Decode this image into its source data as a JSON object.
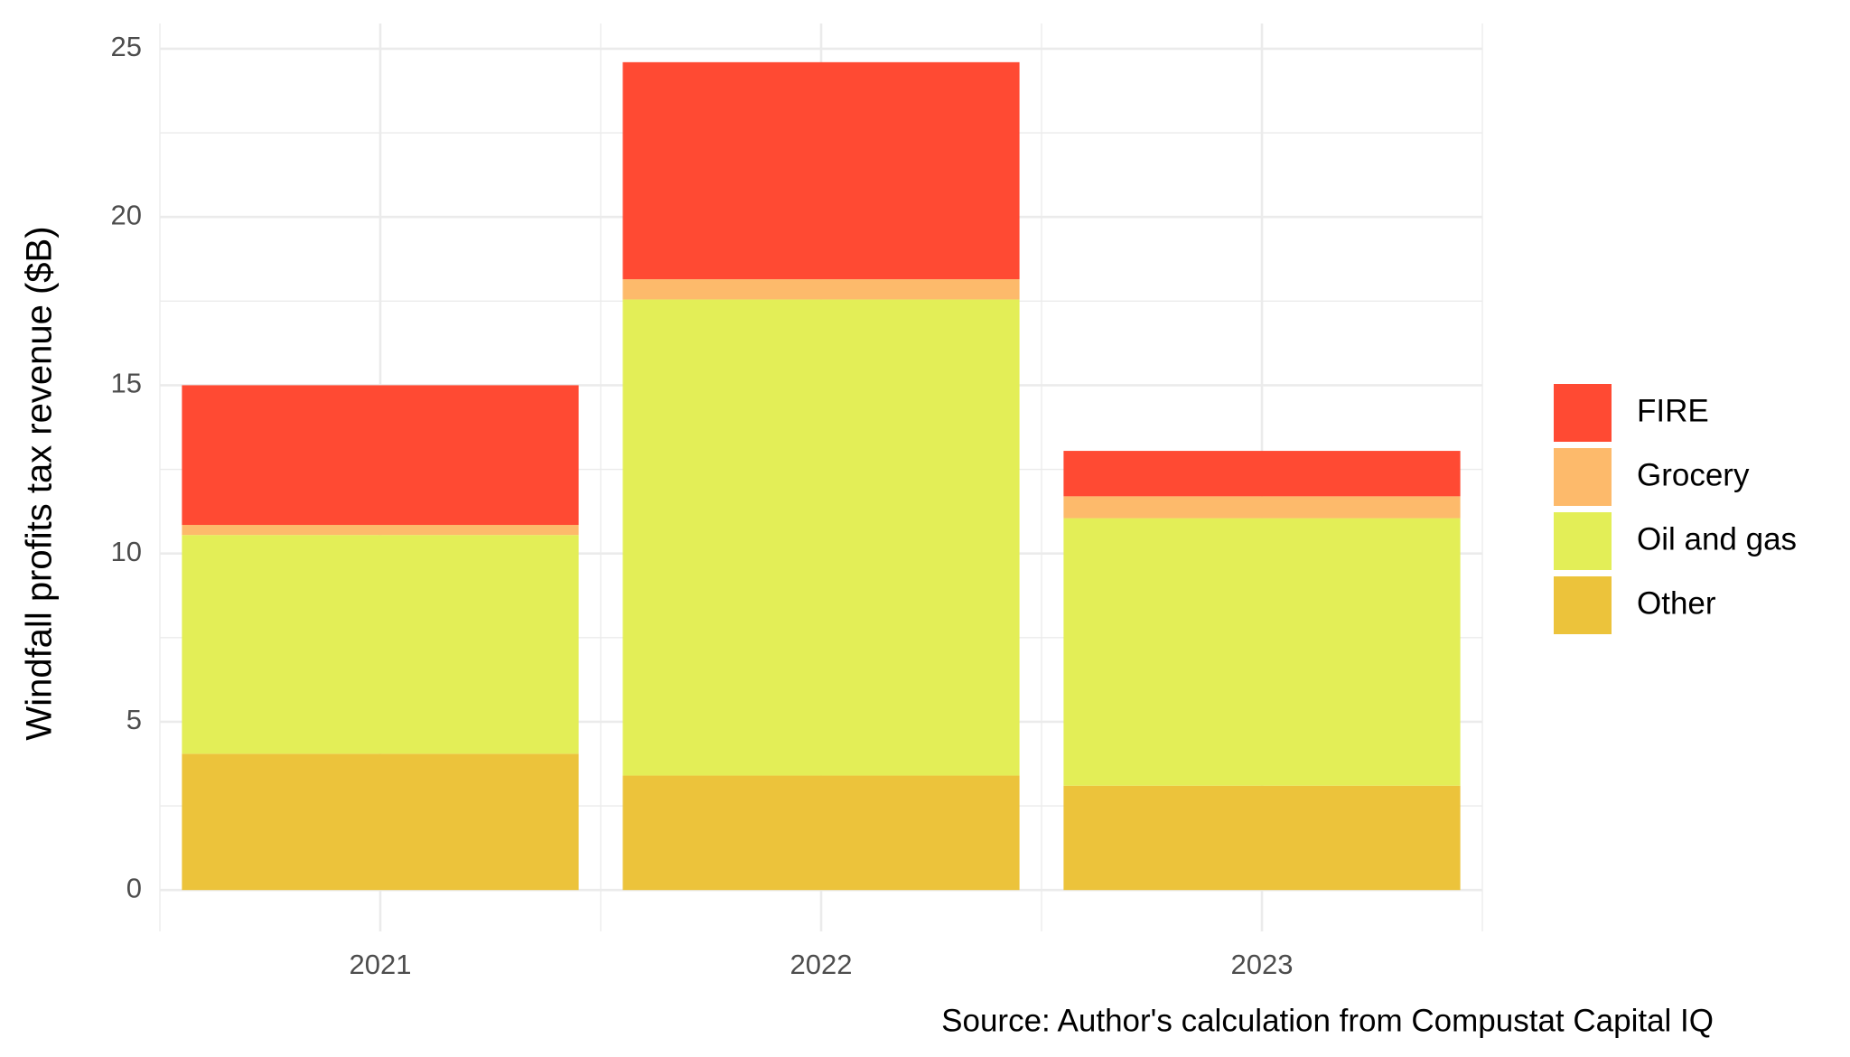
{
  "chart_data": {
    "type": "stacked_bar",
    "y_axis_label": "Windfall profits tax revenue ($B)",
    "caption": "Source: Author's calculation from Compustat Capital IQ",
    "categories": [
      "2021",
      "2022",
      "2023"
    ],
    "series": [
      {
        "name": "FIRE",
        "color": "#ff4a33",
        "values": [
          4.15,
          6.45,
          1.35
        ]
      },
      {
        "name": "Grocery",
        "color": "#fdba6b",
        "values": [
          0.3,
          0.6,
          0.65
        ]
      },
      {
        "name": "Oil and gas",
        "color": "#e3ee57",
        "values": [
          6.5,
          14.15,
          7.95
        ]
      },
      {
        "name": "Other",
        "color": "#ecc33b",
        "values": [
          4.05,
          3.4,
          3.1
        ]
      }
    ],
    "ylim": [
      -1.23,
      25.75
    ],
    "yticks": [
      0,
      5,
      10,
      15,
      20,
      25
    ],
    "y_minor_ticks": [
      2.5,
      7.5,
      12.5,
      17.5,
      22.5
    ],
    "grid": true,
    "legend": "right"
  }
}
